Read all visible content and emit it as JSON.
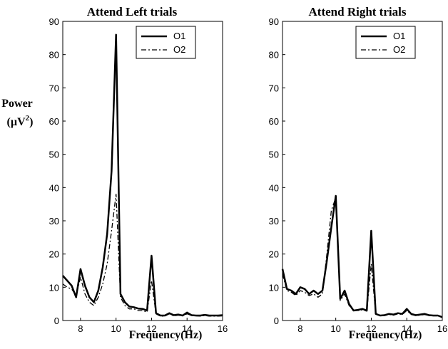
{
  "chart_data": [
    {
      "type": "line",
      "title": "Attend Left trials",
      "xlabel": "Frequency(Hz)",
      "ylabel": "Power",
      "ylabel_unit": "(µV",
      "ylabel_sup": "2",
      "ylabel_close": ")",
      "xlim": [
        7,
        16
      ],
      "ylim": [
        0,
        90
      ],
      "xticks": [
        "8",
        "10",
        "12",
        "14",
        "16"
      ],
      "yticks": [
        "0",
        "10",
        "20",
        "30",
        "40",
        "50",
        "60",
        "70",
        "80",
        "90"
      ],
      "legend_position": "top-right",
      "series": [
        {
          "name": "O1",
          "style": "solid",
          "x": [
            7.0,
            7.25,
            7.5,
            7.75,
            8.0,
            8.25,
            8.5,
            8.75,
            9.0,
            9.25,
            9.5,
            9.75,
            10.0,
            10.25,
            10.5,
            10.75,
            11.0,
            11.25,
            11.5,
            11.75,
            12.0,
            12.25,
            12.5,
            12.75,
            13.0,
            13.25,
            13.5,
            13.75,
            14.0,
            14.25,
            14.5,
            14.75,
            15.0,
            15.25,
            15.5,
            15.75,
            16.0
          ],
          "y": [
            13.5,
            12.0,
            10.5,
            7.0,
            15.5,
            10.5,
            7.0,
            5.5,
            9.0,
            16.0,
            26.0,
            45.0,
            86.0,
            8.0,
            5.5,
            4.2,
            4.0,
            3.6,
            3.5,
            3.0,
            19.5,
            2.2,
            1.5,
            1.5,
            2.2,
            1.6,
            1.8,
            1.5,
            2.4,
            1.6,
            1.5,
            1.5,
            1.7,
            1.5,
            1.5,
            1.5,
            1.6
          ]
        },
        {
          "name": "O2",
          "style": "dashdot",
          "x": [
            7.0,
            7.25,
            7.5,
            7.75,
            8.0,
            8.25,
            8.5,
            8.75,
            9.0,
            9.25,
            9.5,
            9.75,
            10.0,
            10.25,
            10.5,
            10.75,
            11.0,
            11.25,
            11.5,
            11.75,
            12.0,
            12.25,
            12.5,
            12.75,
            13.0,
            13.25,
            13.5,
            13.75,
            14.0,
            14.25,
            14.5,
            14.75,
            15.0,
            15.25,
            15.5,
            15.75,
            16.0
          ],
          "y": [
            11.0,
            10.0,
            9.5,
            7.5,
            13.0,
            8.0,
            5.5,
            4.5,
            7.0,
            11.0,
            17.0,
            27.0,
            38.0,
            7.0,
            4.5,
            3.5,
            3.5,
            3.0,
            3.0,
            2.5,
            12.0,
            2.0,
            1.3,
            1.3,
            2.0,
            1.4,
            1.6,
            1.4,
            2.0,
            1.5,
            1.4,
            1.3,
            1.5,
            1.3,
            1.3,
            1.3,
            1.4
          ]
        }
      ]
    },
    {
      "type": "line",
      "title": "Attend Right trials",
      "xlabel": "Frequency(Hz)",
      "ylabel": "",
      "xlim": [
        7,
        16
      ],
      "ylim": [
        0,
        90
      ],
      "xticks": [
        "8",
        "10",
        "12",
        "14",
        "16"
      ],
      "yticks": [
        "0",
        "10",
        "20",
        "30",
        "40",
        "50",
        "60",
        "70",
        "80",
        "90"
      ],
      "legend_position": "top-right",
      "series": [
        {
          "name": "O1",
          "style": "solid",
          "x": [
            7.0,
            7.25,
            7.5,
            7.75,
            8.0,
            8.25,
            8.5,
            8.75,
            9.0,
            9.25,
            9.5,
            9.75,
            10.0,
            10.25,
            10.5,
            10.75,
            11.0,
            11.25,
            11.5,
            11.75,
            12.0,
            12.25,
            12.5,
            12.75,
            13.0,
            13.25,
            13.5,
            13.75,
            14.0,
            14.25,
            14.5,
            14.75,
            15.0,
            15.25,
            15.5,
            15.75,
            16.0
          ],
          "y": [
            15.5,
            9.5,
            9.0,
            8.0,
            10.0,
            9.5,
            8.0,
            9.0,
            8.0,
            9.0,
            18.0,
            28.0,
            37.5,
            6.5,
            9.0,
            5.0,
            3.0,
            3.2,
            3.5,
            3.0,
            27.0,
            2.0,
            1.5,
            1.6,
            2.0,
            1.8,
            2.2,
            2.0,
            3.5,
            2.0,
            1.6,
            1.8,
            2.0,
            1.6,
            1.5,
            1.5,
            1.0
          ]
        },
        {
          "name": "O2",
          "style": "dashdot",
          "x": [
            7.0,
            7.25,
            7.5,
            7.75,
            8.0,
            8.25,
            8.5,
            8.75,
            9.0,
            9.25,
            9.5,
            9.75,
            10.0,
            10.25,
            10.5,
            10.75,
            11.0,
            11.25,
            11.5,
            11.75,
            12.0,
            12.25,
            12.5,
            12.75,
            13.0,
            13.25,
            13.5,
            13.75,
            14.0,
            14.25,
            14.5,
            14.75,
            15.0,
            15.25,
            15.5,
            15.75,
            16.0
          ],
          "y": [
            14.0,
            9.0,
            8.5,
            7.5,
            9.0,
            8.5,
            7.5,
            8.0,
            7.0,
            8.0,
            20.0,
            33.0,
            37.0,
            6.0,
            8.0,
            4.5,
            3.0,
            3.0,
            3.2,
            2.8,
            17.0,
            2.0,
            1.4,
            1.5,
            1.8,
            1.6,
            2.0,
            1.8,
            3.0,
            1.8,
            1.5,
            1.6,
            1.8,
            1.5,
            1.4,
            1.4,
            1.0
          ]
        }
      ]
    }
  ]
}
